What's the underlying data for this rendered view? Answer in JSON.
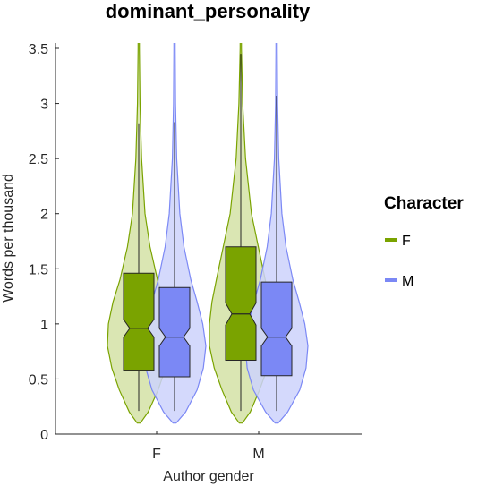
{
  "chart_data": {
    "type": "violin",
    "title": "dominant_personality",
    "xlabel": "Author gender",
    "ylabel": "Words per thousand",
    "categories": [
      "F",
      "M"
    ],
    "ylim": [
      0,
      3.5
    ],
    "yticks": [
      0,
      0.5,
      1,
      1.5,
      2,
      2.5,
      3,
      3.5
    ],
    "ytick_labels": [
      "0",
      "0.5",
      "1",
      "1.5",
      "2",
      "2.5",
      "3",
      "3.5"
    ],
    "grid": false,
    "legend": {
      "title": "Character",
      "placement": "right",
      "entries": [
        "F",
        "M"
      ]
    },
    "series": [
      {
        "name": "F",
        "color": "#7aa300",
        "fill": "#d4e2a6",
        "stats": [
          {
            "category": "F",
            "whisker_low": 0.21,
            "q1": 0.58,
            "median": 0.96,
            "q3": 1.46,
            "whisker_high": 2.82,
            "notch_low": 0.88,
            "notch_high": 1.04
          },
          {
            "category": "M",
            "whisker_low": 0.21,
            "q1": 0.67,
            "median": 1.09,
            "q3": 1.7,
            "whisker_high": 3.45,
            "notch_low": 0.99,
            "notch_high": 1.19
          }
        ],
        "density": [
          {
            "category": "F",
            "profile": [
              [
                0.1,
                0.05
              ],
              [
                0.2,
                0.3
              ],
              [
                0.4,
                0.62
              ],
              [
                0.6,
                0.86
              ],
              [
                0.8,
                1.0
              ],
              [
                1.0,
                0.97
              ],
              [
                1.2,
                0.82
              ],
              [
                1.4,
                0.6
              ],
              [
                1.7,
                0.36
              ],
              [
                2.0,
                0.2
              ],
              [
                2.5,
                0.09
              ],
              [
                3.0,
                0.04
              ],
              [
                3.5,
                0.02
              ]
            ]
          },
          {
            "category": "M",
            "profile": [
              [
                0.1,
                0.05
              ],
              [
                0.2,
                0.3
              ],
              [
                0.4,
                0.6
              ],
              [
                0.6,
                0.85
              ],
              [
                0.8,
                1.0
              ],
              [
                1.0,
                1.0
              ],
              [
                1.2,
                0.92
              ],
              [
                1.4,
                0.78
              ],
              [
                1.7,
                0.56
              ],
              [
                2.0,
                0.34
              ],
              [
                2.5,
                0.15
              ],
              [
                3.0,
                0.06
              ],
              [
                3.5,
                0.02
              ]
            ]
          }
        ]
      },
      {
        "name": "M",
        "color": "#7b88f5",
        "fill": "#cdd2fb",
        "stats": [
          {
            "category": "F",
            "whisker_low": 0.21,
            "q1": 0.52,
            "median": 0.88,
            "q3": 1.33,
            "whisker_high": 2.83,
            "notch_low": 0.8,
            "notch_high": 0.96
          },
          {
            "category": "M",
            "whisker_low": 0.21,
            "q1": 0.53,
            "median": 0.88,
            "q3": 1.38,
            "whisker_high": 3.07,
            "notch_low": 0.8,
            "notch_high": 0.96
          }
        ],
        "density": [
          {
            "category": "F",
            "profile": [
              [
                0.1,
                0.05
              ],
              [
                0.2,
                0.35
              ],
              [
                0.4,
                0.72
              ],
              [
                0.6,
                0.92
              ],
              [
                0.8,
                1.0
              ],
              [
                1.0,
                0.9
              ],
              [
                1.2,
                0.72
              ],
              [
                1.4,
                0.52
              ],
              [
                1.7,
                0.3
              ],
              [
                2.0,
                0.17
              ],
              [
                2.5,
                0.07
              ],
              [
                3.0,
                0.03
              ],
              [
                3.5,
                0.02
              ]
            ]
          },
          {
            "category": "M",
            "profile": [
              [
                0.1,
                0.05
              ],
              [
                0.2,
                0.35
              ],
              [
                0.4,
                0.74
              ],
              [
                0.6,
                0.94
              ],
              [
                0.8,
                1.0
              ],
              [
                1.0,
                0.9
              ],
              [
                1.2,
                0.72
              ],
              [
                1.4,
                0.52
              ],
              [
                1.7,
                0.3
              ],
              [
                2.0,
                0.17
              ],
              [
                2.5,
                0.07
              ],
              [
                3.0,
                0.03
              ],
              [
                3.5,
                0.02
              ]
            ]
          }
        ]
      }
    ]
  }
}
